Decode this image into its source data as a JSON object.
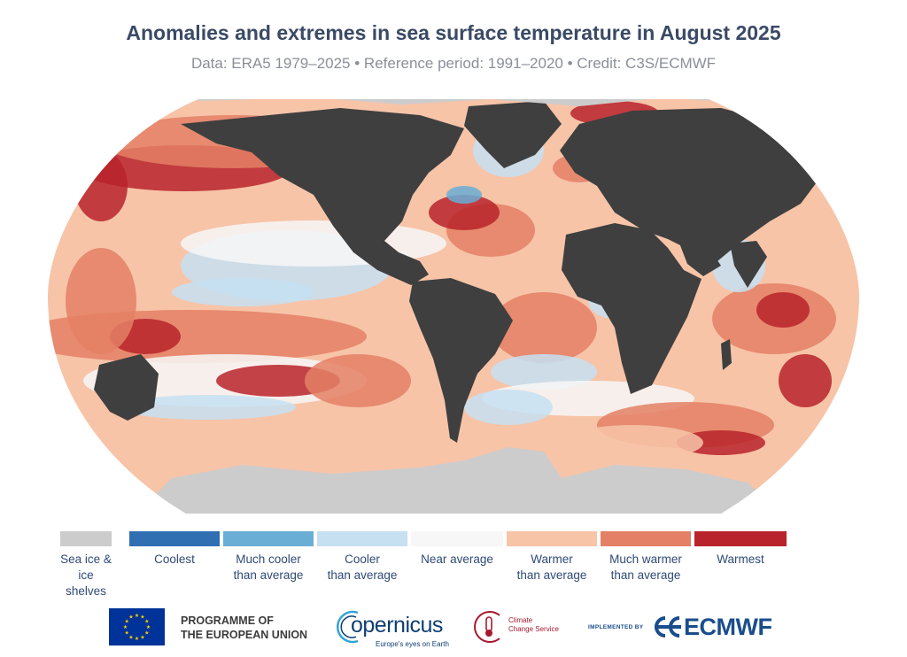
{
  "title": "Anomalies and extremes in sea surface temperature in August 2025",
  "subtitle": "Data: ERA5 1979–2025 • Reference period: 1991–2020 • Credit: C3S/ECMWF",
  "colors": {
    "land": "#3f3f3f",
    "sea_ice": "#cccccc",
    "coolest": "#2f6fb2",
    "much_cooler": "#6aaed6",
    "cooler": "#c6e0f2",
    "near_average": "#f7f7f7",
    "warmer": "#f7c4a8",
    "much_warmer": "#e48065",
    "warmest": "#b9232c"
  },
  "legend": [
    {
      "key": "sea_ice",
      "label": "Sea ice &\nice shelves"
    },
    {
      "key": "coolest",
      "label": "Coolest"
    },
    {
      "key": "much_cooler",
      "label": "Much cooler\nthan average"
    },
    {
      "key": "cooler",
      "label": "Cooler\nthan average"
    },
    {
      "key": "near_average",
      "label": "Near average"
    },
    {
      "key": "warmer",
      "label": "Warmer\nthan average"
    },
    {
      "key": "much_warmer",
      "label": "Much warmer\nthan average"
    },
    {
      "key": "warmest",
      "label": "Warmest"
    }
  ],
  "logos": {
    "eu_programme": "PROGRAMME OF\nTHE EUROPEAN UNION",
    "copernicus": "opernicus",
    "copernicus_tagline": "Europe's eyes on Earth",
    "c3s": "Climate\nChange Service",
    "implemented_by": "IMPLEMENTED BY",
    "ecmwf": "ECMWF"
  }
}
